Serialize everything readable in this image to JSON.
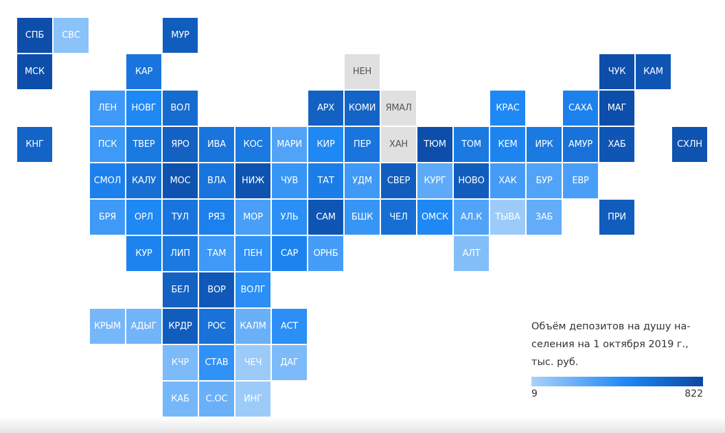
{
  "legend": {
    "title": "Объём депозитов на душу на-\nселения на 1 октября 2019 г.,\nтыс. руб.",
    "min_label": "9",
    "max_label": "822"
  },
  "colors": {
    "no_data": "#e0e0e0",
    "scale": [
      "#a9d2fb",
      "#1e88f5",
      "#0b47a1"
    ]
  },
  "regions": [
    {
      "label": "СПБ",
      "row": 0,
      "col": 0,
      "level": 0.95
    },
    {
      "label": "СВС",
      "row": 0,
      "col": 1,
      "level": 0.12
    },
    {
      "label": "МУР",
      "row": 0,
      "col": 4,
      "level": 0.85
    },
    {
      "label": "МСК",
      "row": 1,
      "col": 0,
      "level": 0.95
    },
    {
      "label": "КАР",
      "row": 1,
      "col": 3,
      "level": 0.68
    },
    {
      "label": "НЕН",
      "row": 1,
      "col": 9,
      "level": null
    },
    {
      "label": "ЧУК",
      "row": 1,
      "col": 16,
      "level": 0.95
    },
    {
      "label": "КАМ",
      "row": 1,
      "col": 17,
      "level": 0.9
    },
    {
      "label": "ЛЕН",
      "row": 2,
      "col": 2,
      "level": 0.42
    },
    {
      "label": "НОВГ",
      "row": 2,
      "col": 3,
      "level": 0.55
    },
    {
      "label": "ВОЛ",
      "row": 2,
      "col": 4,
      "level": 0.75
    },
    {
      "label": "АРХ",
      "row": 2,
      "col": 8,
      "level": 0.82
    },
    {
      "label": "КОМИ",
      "row": 2,
      "col": 9,
      "level": 0.8
    },
    {
      "label": "ЯМАЛ",
      "row": 2,
      "col": 10,
      "level": null
    },
    {
      "label": "КРАС",
      "row": 2,
      "col": 13,
      "level": 0.55
    },
    {
      "label": "САХА",
      "row": 2,
      "col": 15,
      "level": 0.6
    },
    {
      "label": "МАГ",
      "row": 2,
      "col": 16,
      "level": 0.95
    },
    {
      "label": "КНГ",
      "row": 3,
      "col": 0,
      "level": 0.8
    },
    {
      "label": "ПСК",
      "row": 3,
      "col": 2,
      "level": 0.42
    },
    {
      "label": "ТВЕР",
      "row": 3,
      "col": 3,
      "level": 0.65
    },
    {
      "label": "ЯРО",
      "row": 3,
      "col": 4,
      "level": 0.82
    },
    {
      "label": "ИВА",
      "row": 3,
      "col": 5,
      "level": 0.68
    },
    {
      "label": "КОС",
      "row": 3,
      "col": 6,
      "level": 0.65
    },
    {
      "label": "МАРИ",
      "row": 3,
      "col": 7,
      "level": 0.35
    },
    {
      "label": "КИР",
      "row": 3,
      "col": 8,
      "level": 0.55
    },
    {
      "label": "ПЕР",
      "row": 3,
      "col": 9,
      "level": 0.68
    },
    {
      "label": "ХАН",
      "row": 3,
      "col": 10,
      "level": null
    },
    {
      "label": "ТЮМ",
      "row": 3,
      "col": 11,
      "level": 0.95
    },
    {
      "label": "ТОМ",
      "row": 3,
      "col": 12,
      "level": 0.65
    },
    {
      "label": "КЕМ",
      "row": 3,
      "col": 13,
      "level": 0.58
    },
    {
      "label": "ИРК",
      "row": 3,
      "col": 14,
      "level": 0.65
    },
    {
      "label": "АМУР",
      "row": 3,
      "col": 15,
      "level": 0.7
    },
    {
      "label": "ХАБ",
      "row": 3,
      "col": 16,
      "level": 0.9
    },
    {
      "label": "СХЛН",
      "row": 3,
      "col": 18,
      "level": 0.92
    },
    {
      "label": "СМОЛ",
      "row": 4,
      "col": 2,
      "level": 0.6
    },
    {
      "label": "КАЛУ",
      "row": 4,
      "col": 3,
      "level": 0.72
    },
    {
      "label": "МОС",
      "row": 4,
      "col": 4,
      "level": 0.92
    },
    {
      "label": "ВЛА",
      "row": 4,
      "col": 5,
      "level": 0.68
    },
    {
      "label": "НИЖ",
      "row": 4,
      "col": 6,
      "level": 0.92
    },
    {
      "label": "ЧУВ",
      "row": 4,
      "col": 7,
      "level": 0.45
    },
    {
      "label": "ТАТ",
      "row": 4,
      "col": 8,
      "level": 0.62
    },
    {
      "label": "УДМ",
      "row": 4,
      "col": 9,
      "level": 0.42
    },
    {
      "label": "СВЕР",
      "row": 4,
      "col": 10,
      "level": 0.85
    },
    {
      "label": "КУРГ",
      "row": 4,
      "col": 11,
      "level": 0.3
    },
    {
      "label": "НОВО",
      "row": 4,
      "col": 12,
      "level": 0.85
    },
    {
      "label": "ХАК",
      "row": 4,
      "col": 13,
      "level": 0.4
    },
    {
      "label": "БУР",
      "row": 4,
      "col": 14,
      "level": 0.35
    },
    {
      "label": "ЕВР",
      "row": 4,
      "col": 15,
      "level": 0.38
    },
    {
      "label": "БРЯ",
      "row": 5,
      "col": 2,
      "level": 0.42
    },
    {
      "label": "ОРЛ",
      "row": 5,
      "col": 3,
      "level": 0.55
    },
    {
      "label": "ТУЛ",
      "row": 5,
      "col": 4,
      "level": 0.68
    },
    {
      "label": "РЯЗ",
      "row": 5,
      "col": 5,
      "level": 0.6
    },
    {
      "label": "МОР",
      "row": 5,
      "col": 6,
      "level": 0.38
    },
    {
      "label": "УЛЬ",
      "row": 5,
      "col": 7,
      "level": 0.5
    },
    {
      "label": "САМ",
      "row": 5,
      "col": 8,
      "level": 0.9
    },
    {
      "label": "БШК",
      "row": 5,
      "col": 9,
      "level": 0.45
    },
    {
      "label": "ЧЕЛ",
      "row": 5,
      "col": 10,
      "level": 0.72
    },
    {
      "label": "ОМСК",
      "row": 5,
      "col": 11,
      "level": 0.55
    },
    {
      "label": "АЛ.К",
      "row": 5,
      "col": 12,
      "level": 0.35
    },
    {
      "label": "ТЫВА",
      "row": 5,
      "col": 13,
      "level": 0.05
    },
    {
      "label": "ЗАБ",
      "row": 5,
      "col": 14,
      "level": 0.28
    },
    {
      "label": "ПРИ",
      "row": 5,
      "col": 16,
      "level": 0.85
    },
    {
      "label": "КУР",
      "row": 6,
      "col": 3,
      "level": 0.58
    },
    {
      "label": "ЛИП",
      "row": 6,
      "col": 4,
      "level": 0.65
    },
    {
      "label": "ТАМ",
      "row": 6,
      "col": 5,
      "level": 0.42
    },
    {
      "label": "ПЕН",
      "row": 6,
      "col": 6,
      "level": 0.48
    },
    {
      "label": "САР",
      "row": 6,
      "col": 7,
      "level": 0.58
    },
    {
      "label": "ОРНБ",
      "row": 6,
      "col": 8,
      "level": 0.4
    },
    {
      "label": "АЛТ",
      "row": 6,
      "col": 12,
      "level": 0.15
    },
    {
      "label": "БЕЛ",
      "row": 7,
      "col": 4,
      "level": 0.82
    },
    {
      "label": "ВОР",
      "row": 7,
      "col": 5,
      "level": 0.88
    },
    {
      "label": "ВОЛГ",
      "row": 7,
      "col": 6,
      "level": 0.5
    },
    {
      "label": "КРЫМ",
      "row": 8,
      "col": 2,
      "level": 0.2
    },
    {
      "label": "АДЫГ",
      "row": 8,
      "col": 3,
      "level": 0.22
    },
    {
      "label": "КРДР",
      "row": 8,
      "col": 4,
      "level": 0.85
    },
    {
      "label": "РОС",
      "row": 8,
      "col": 5,
      "level": 0.7
    },
    {
      "label": "КАЛМ",
      "row": 8,
      "col": 6,
      "level": 0.25
    },
    {
      "label": "АСТ",
      "row": 8,
      "col": 7,
      "level": 0.5
    },
    {
      "label": "КЧР",
      "row": 9,
      "col": 4,
      "level": 0.18
    },
    {
      "label": "СТАВ",
      "row": 9,
      "col": 5,
      "level": 0.48
    },
    {
      "label": "ЧЕЧ",
      "row": 9,
      "col": 6,
      "level": 0.05
    },
    {
      "label": "ДАГ",
      "row": 9,
      "col": 7,
      "level": 0.18
    },
    {
      "label": "КАБ",
      "row": 10,
      "col": 4,
      "level": 0.2
    },
    {
      "label": "С.ОС",
      "row": 10,
      "col": 5,
      "level": 0.25
    },
    {
      "label": "ИНГ",
      "row": 10,
      "col": 6,
      "level": 0.05
    }
  ]
}
